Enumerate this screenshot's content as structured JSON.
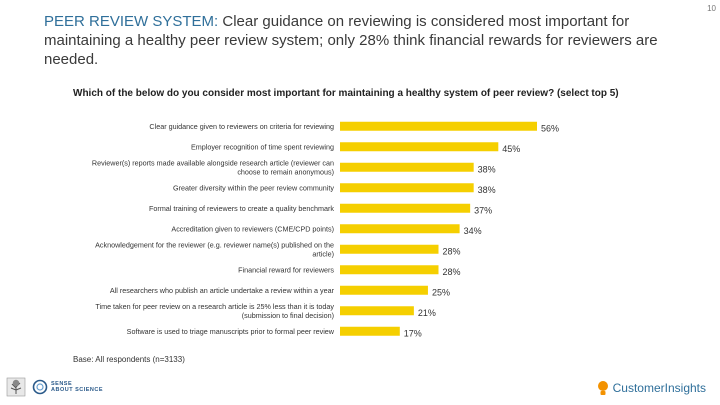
{
  "page": {
    "number": "10"
  },
  "headline": {
    "lead": "PEER REVIEW SYSTEM:",
    "text": " Clear guidance on reviewing is considered most important for maintaining a healthy peer review system; only 28% think financial rewards for reviewers are needed."
  },
  "question": "Which of the below do you consider most important for maintaining a healthy system of peer review? (select top 5)",
  "chart_data": {
    "type": "bar",
    "orientation": "horizontal",
    "categories": [
      "Clear guidance given to reviewers on criteria for reviewing",
      "Employer recognition of time spent reviewing",
      "Reviewer(s) reports made available alongside research article (reviewer can choose to remain anonymous)",
      "Greater diversity within the peer review community",
      "Formal training of reviewers to create a quality benchmark",
      "Accreditation given to reviewers (CME/CPD points)",
      "Acknowledgement for the reviewer (e.g. reviewer name(s) published on the article)",
      "Financial reward for reviewers",
      "All researchers who publish an article undertake a review within a year",
      "Time taken for peer review on a research article is 25% less than it is today (submission to final decision)",
      "Software is used to triage manuscripts prior to formal peer review"
    ],
    "values": [
      56,
      45,
      38,
      38,
      37,
      34,
      28,
      28,
      25,
      21,
      17
    ],
    "value_labels": [
      "56%",
      "45%",
      "38%",
      "38%",
      "37%",
      "34%",
      "28%",
      "28%",
      "25%",
      "21%",
      "17%"
    ],
    "bar_color": "#f5cf00",
    "xlim": [
      0,
      56
    ],
    "grid": false,
    "legend": "none"
  },
  "base_note": "Base: All respondents (n=3133)",
  "branding": {
    "right_logo_text": "CustomerInsights",
    "left_logo_text": [
      "SENSE",
      "ABOUT SCIENCE"
    ]
  },
  "colors": {
    "accent": "#2f6f9a",
    "bar": "#f5cf00",
    "logo_orange": "#f39200"
  }
}
